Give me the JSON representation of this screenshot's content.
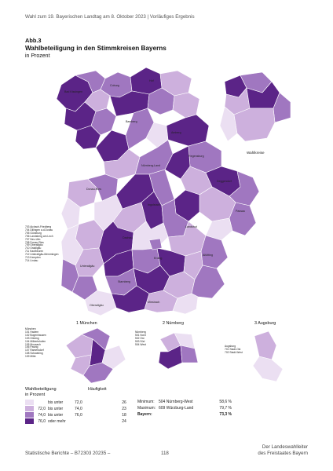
{
  "header": "Wahl zum 19. Bayerischen Landtag am 8. Oktober 2023 | Vorläufiges Ergebnis",
  "figure_no": "Abb.3",
  "title": "Wahlbeteiligung in den Stimmkreisen Bayerns",
  "subtitle": "in Prozent",
  "colors": {
    "c1": "#ebdff2",
    "c2": "#cdb0dd",
    "c3": "#a077c0",
    "c4": "#5b2487",
    "border": "#ffffff"
  },
  "wahlkreise_label": "Wahlkreise",
  "insets": {
    "muenchen": "1 München",
    "nuernberg": "2 Nürnberg",
    "augsburg": "3 Augsburg"
  },
  "muenchen_list": [
    "München",
    "101 Hadern",
    "102 Bogenhausen",
    "103 Giesing",
    "104 Milbertshofen",
    "105 Moosach",
    "106 Pasing",
    "107 Ramersdorf",
    "108 Schwabing",
    "109 Mitte"
  ],
  "nuernberg_list": [
    "Nürnberg",
    "501 Nord",
    "502 Ost",
    "503 Süd",
    "504 West"
  ],
  "augsburg_list": [
    "Augsburg",
    "701 Stadt-Ost",
    "702 Stadt-West"
  ],
  "side_list": [
    "703 Aichach-Friedberg",
    "704 Dillingen a.d.Donau",
    "705 Günzburg",
    "706 Landsberg am Lech",
    "707 Neu-Ulm",
    "708 Donau-Ries",
    "709 Oberallgäu",
    "710 Ostallgäu",
    "711 Kaufbeuren",
    "712 Unterallgäu-Memmingen",
    "713 Kempten",
    "714 Lindau"
  ],
  "legend": {
    "title": [
      "Wahlbeteiligung",
      "in Prozent"
    ],
    "freq_label": "Häufigkeit",
    "rows": [
      {
        "lo": "",
        "mid": "bis unter",
        "hi": "72,0",
        "count": "26"
      },
      {
        "lo": "72,0",
        "mid": "bis unter",
        "hi": "74,0",
        "count": "23"
      },
      {
        "lo": "74,0",
        "mid": "bis unter",
        "hi": "76,0",
        "count": "18"
      },
      {
        "lo": "76,0",
        "mid": "oder mehr",
        "hi": "",
        "count": "24"
      }
    ]
  },
  "stats": [
    {
      "label": "Minimum:",
      "name": "504 Nürnberg-West",
      "value": "58,6 %"
    },
    {
      "label": "Maximum:",
      "name": "609 Würzburg-Land",
      "value": "79,7 %"
    },
    {
      "label": "Bayern:",
      "name": "",
      "value": "73,3 %"
    }
  ],
  "footer": {
    "left": "Statistische Berichte – B72303 20235 –",
    "page": "118",
    "right": [
      "Der Landeswahlleiter",
      "des Freistaates Bayern"
    ]
  }
}
